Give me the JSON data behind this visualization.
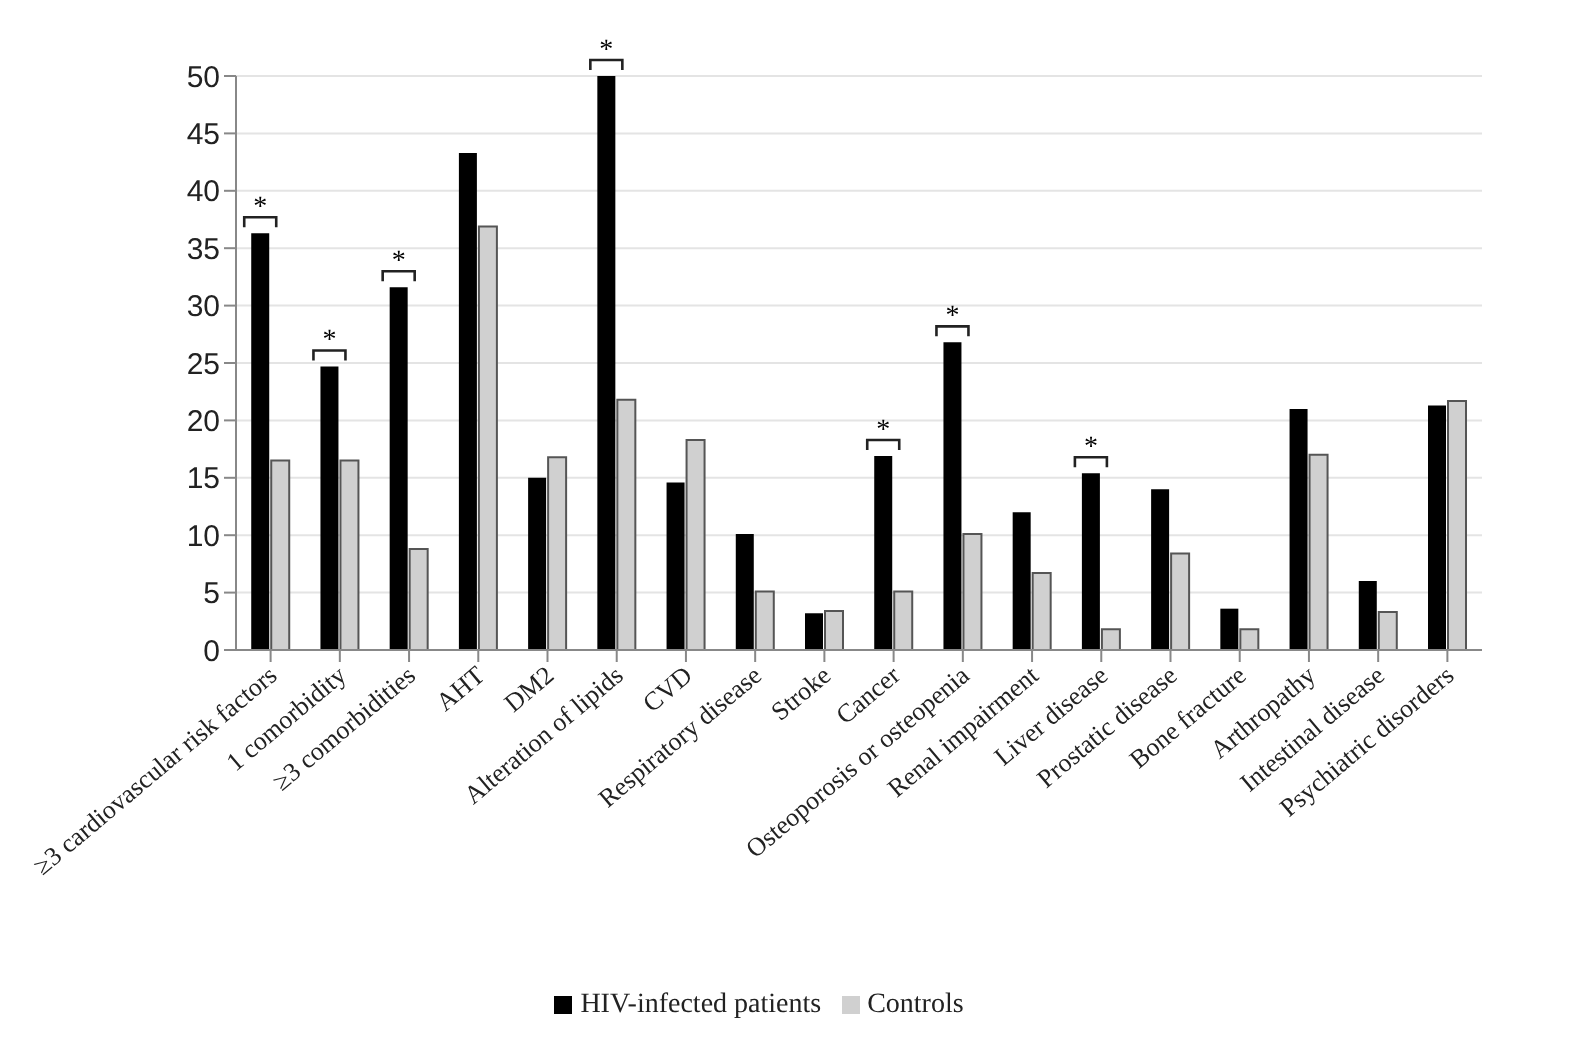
{
  "chart_data": {
    "type": "bar",
    "categories": [
      "≥3 cardiovascular risk factors",
      "1 comorbidity",
      "≥3 comorbidities",
      "AHT",
      "DM2",
      "Alteration of lipids",
      "CVD",
      "Respiratory disease",
      "Stroke",
      "Cancer",
      "Osteoporosis or osteopenia",
      "Renal impairment",
      "Liver disease",
      "Prostatic disease",
      "Bone fracture",
      "Arthropathy",
      "Intestinal disease",
      "Psychiatric disorders"
    ],
    "series": [
      {
        "name": "HIV-infected patients",
        "color": "#000000",
        "values": [
          36.3,
          24.7,
          31.6,
          43.3,
          15,
          50,
          14.6,
          10.1,
          3.2,
          16.9,
          26.8,
          12,
          15.4,
          14,
          3.6,
          21,
          6,
          21.3
        ]
      },
      {
        "name": "Controls",
        "color": "#d0d0d0",
        "values": [
          16.5,
          16.5,
          8.8,
          36.9,
          16.8,
          21.8,
          18.3,
          5.1,
          3.4,
          5.1,
          10.1,
          6.7,
          1.8,
          8.4,
          1.8,
          17,
          3.3,
          21.7
        ]
      }
    ],
    "ylim": [
      0,
      50
    ],
    "yticks": [
      0,
      5,
      10,
      15,
      20,
      25,
      30,
      35,
      40,
      45,
      50
    ],
    "grid": "y",
    "legend": "bottom",
    "annotations": [
      {
        "text": "*",
        "x": "≥3 cardiovascular risk factors",
        "y": 36.3
      },
      {
        "text": "*",
        "x": "1 comorbidity",
        "y": 24.7
      },
      {
        "text": "*",
        "x": "≥3 comorbidities",
        "y": 31.6
      },
      {
        "text": "*",
        "x": "Alteration of lipids",
        "y": 50
      },
      {
        "text": "*",
        "x": "Cancer",
        "y": 16.9
      },
      {
        "text": "*",
        "x": "Osteoporosis or osteopenia",
        "y": 26.8
      },
      {
        "text": "*",
        "x": "Liver disease",
        "y": 15.4
      }
    ]
  }
}
